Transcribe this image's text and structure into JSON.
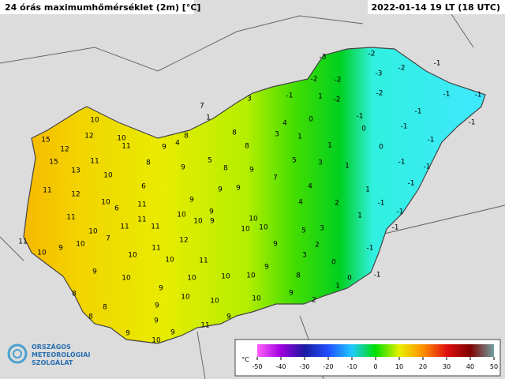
{
  "header": {
    "title": "24 órás maximumhőmérséklet (2m) [°C]",
    "timestamp": "2022-01-14 19 LT (18 UTC)"
  },
  "logo": {
    "lines": [
      "ORSZÁGOS",
      "METEOROLÓGIAI",
      "SZOLGÁLAT"
    ]
  },
  "legend": {
    "unit": "°C",
    "ticks": [
      -50,
      -40,
      -30,
      -20,
      -10,
      0,
      10,
      20,
      30,
      40,
      50
    ]
  },
  "stations": [
    -3,
    -2,
    -1,
    -3,
    -2,
    -2,
    -2,
    -1,
    -1,
    3,
    -1,
    1,
    -2,
    -2,
    7,
    1,
    0,
    4,
    -1,
    -1,
    -1,
    10,
    10,
    12,
    8,
    8,
    3,
    1,
    0,
    -1,
    -1,
    15,
    12,
    9,
    4,
    11,
    8,
    1,
    0,
    15,
    11,
    8,
    5,
    8,
    9,
    5,
    3,
    1,
    -1,
    -1,
    13,
    10,
    9,
    7,
    11,
    6,
    9,
    9,
    4,
    1,
    -1,
    12,
    10,
    9,
    2,
    -1,
    -1,
    11,
    6,
    11,
    10,
    9,
    4,
    1,
    11,
    10,
    7,
    11,
    11,
    11,
    12,
    10,
    10,
    9,
    10,
    10,
    3,
    -1,
    5,
    10,
    9,
    10,
    10,
    11,
    9,
    2,
    -1,
    10,
    11,
    3,
    0,
    9,
    9,
    10,
    10,
    10,
    10,
    8,
    0,
    -1,
    1,
    8,
    9,
    9,
    8,
    10,
    10,
    9,
    2,
    10,
    8,
    9,
    9,
    9,
    9,
    11,
    10
  ]
}
